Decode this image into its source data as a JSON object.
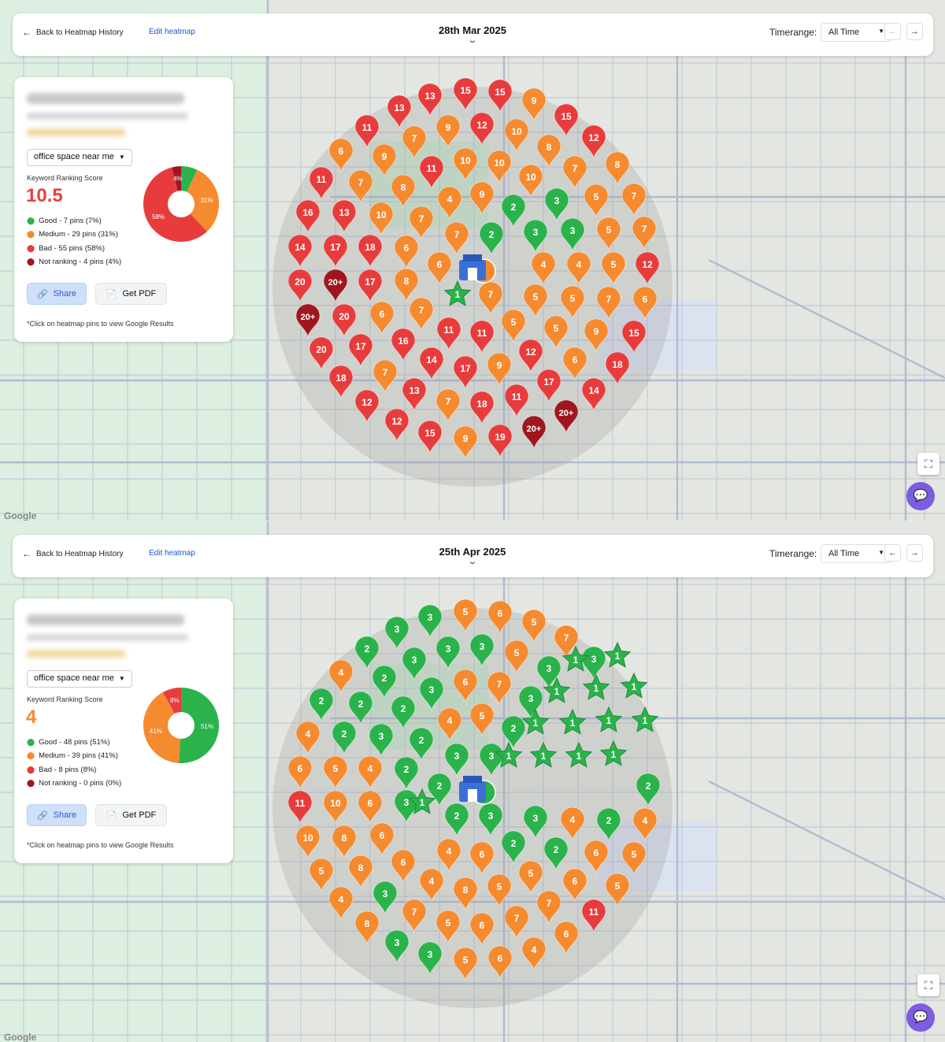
{
  "colors": {
    "good": "#2bb34b",
    "medium": "#f58a2f",
    "bad": "#e83c3c",
    "not_ranking": "#a01620",
    "accent": "#1a56c8",
    "chat": "#7c5ce0"
  },
  "panels": [
    {
      "back_label": "Back to Heatmap History",
      "edit_label": "Edit heatmap",
      "date": "28th Mar 2025",
      "timerange_label": "Timerange:",
      "timerange_value": "All Time",
      "keyword": "office space near me",
      "krs_label": "Keyword Ranking Score",
      "score": "10.5",
      "score_color": "#e8403c",
      "legend": [
        "Good - 7 pins (7%)",
        "Medium - 29 pins (31%)",
        "Bad - 55 pins (58%)",
        "Not ranking - 4 pins (4%)"
      ],
      "chart_data": {
        "type": "pie",
        "categories": [
          "Good",
          "Medium",
          "Bad",
          "Not ranking"
        ],
        "values": [
          7,
          31,
          58,
          4
        ],
        "labels": [
          "",
          "31%",
          "58%",
          "4%"
        ]
      },
      "share_label": "Share",
      "pdf_label": "Get PDF",
      "note": "*Click on heatmap pins to view Google Results",
      "pins": [
        [
          "13",
          507,
          140
        ],
        [
          "13",
          546,
          125
        ],
        [
          "15",
          591,
          118
        ],
        [
          "15",
          635,
          120
        ],
        [
          "9",
          678,
          131
        ],
        [
          "11",
          466,
          165
        ],
        [
          "7",
          526,
          179
        ],
        [
          "9",
          569,
          165
        ],
        [
          "12",
          612,
          162
        ],
        [
          "10",
          656,
          170
        ],
        [
          "15",
          719,
          151
        ],
        [
          "12",
          754,
          178
        ],
        [
          "6",
          433,
          195
        ],
        [
          "9",
          488,
          202
        ],
        [
          "11",
          548,
          217
        ],
        [
          "10",
          591,
          207
        ],
        [
          "10",
          634,
          210
        ],
        [
          "8",
          697,
          190
        ],
        [
          "7",
          730,
          217
        ],
        [
          "8",
          784,
          212
        ],
        [
          "11",
          408,
          231
        ],
        [
          "7",
          458,
          235
        ],
        [
          "8",
          512,
          241
        ],
        [
          "4",
          571,
          256
        ],
        [
          "10",
          674,
          228
        ],
        [
          "9",
          612,
          250
        ],
        [
          "2",
          652,
          266
        ],
        [
          "3",
          707,
          258
        ],
        [
          "5",
          757,
          253
        ],
        [
          "7",
          805,
          252
        ],
        [
          "16",
          391,
          273
        ],
        [
          "13",
          437,
          273
        ],
        [
          "10",
          484,
          276
        ],
        [
          "7",
          535,
          281
        ],
        [
          "7",
          580,
          301
        ],
        [
          "2",
          624,
          301
        ],
        [
          "3",
          680,
          298
        ],
        [
          "3",
          727,
          296
        ],
        [
          "5",
          773,
          295
        ],
        [
          "7",
          818,
          294
        ],
        [
          "14",
          381,
          317
        ],
        [
          "17",
          426,
          317
        ],
        [
          "18",
          470,
          317
        ],
        [
          "6",
          516,
          318
        ],
        [
          "4",
          690,
          339
        ],
        [
          "4",
          735,
          339
        ],
        [
          "5",
          779,
          339
        ],
        [
          "12",
          822,
          339
        ],
        [
          "20",
          381,
          361
        ],
        [
          "20+",
          426,
          361
        ],
        [
          "17",
          470,
          361
        ],
        [
          "8",
          516,
          360
        ],
        [
          "6",
          558,
          339
        ],
        [
          "7",
          623,
          377
        ],
        [
          "5",
          680,
          380
        ],
        [
          "5",
          727,
          382
        ],
        [
          "7",
          773,
          383
        ],
        [
          "6",
          819,
          383
        ],
        [
          "20+",
          391,
          405
        ],
        [
          "20",
          437,
          405
        ],
        [
          "6",
          485,
          402
        ],
        [
          "7",
          535,
          397
        ],
        [
          "11",
          570,
          422
        ],
        [
          "11",
          612,
          426
        ],
        [
          "5",
          652,
          412
        ],
        [
          "5",
          706,
          420
        ],
        [
          "9",
          757,
          424
        ],
        [
          "15",
          805,
          426
        ],
        [
          "20",
          408,
          447
        ],
        [
          "17",
          458,
          443
        ],
        [
          "16",
          512,
          436
        ],
        [
          "14",
          548,
          460
        ],
        [
          "17",
          591,
          471
        ],
        [
          "9",
          634,
          467
        ],
        [
          "12",
          674,
          450
        ],
        [
          "6",
          730,
          460
        ],
        [
          "18",
          784,
          466
        ],
        [
          "18",
          433,
          483
        ],
        [
          "7",
          489,
          476
        ],
        [
          "13",
          526,
          499
        ],
        [
          "17",
          697,
          488
        ],
        [
          "14",
          754,
          499
        ],
        [
          "12",
          466,
          514
        ],
        [
          "7",
          569,
          513
        ],
        [
          "18",
          612,
          516
        ],
        [
          "11",
          656,
          507
        ],
        [
          "20+",
          719,
          527
        ],
        [
          "12",
          504,
          538
        ],
        [
          "15",
          546,
          553
        ],
        [
          "9",
          591,
          560
        ],
        [
          "19",
          635,
          558
        ],
        [
          "20+",
          678,
          547
        ]
      ],
      "stars": [
        [
          "1",
          581,
          374
        ]
      ],
      "circle_pin": [
        "6",
        614,
        344
      ]
    },
    {
      "back_label": "Back to Heatmap History",
      "edit_label": "Edit heatmap",
      "date": "25th Apr 2025",
      "timerange_label": "Timerange:",
      "timerange_value": "All Time",
      "keyword": "office space near me",
      "krs_label": "Keyword Ranking Score",
      "score": "4",
      "score_color": "#f58a2f",
      "legend": [
        "Good - 48 pins (51%)",
        "Medium - 39 pins (41%)",
        "Bad - 8 pins (8%)",
        "Not ranking - 0 pins (0%)"
      ],
      "chart_data": {
        "type": "pie",
        "categories": [
          "Good",
          "Medium",
          "Bad",
          "Not ranking"
        ],
        "values": [
          51,
          41,
          8,
          0
        ],
        "labels": [
          "51%",
          "41%",
          "8%",
          ""
        ]
      },
      "share_label": "Share",
      "pdf_label": "Get PDF",
      "note": "*Click on heatmap pins to view Google Results",
      "pins": [
        [
          "3",
          504,
          140
        ],
        [
          "3",
          546,
          125
        ],
        [
          "5",
          591,
          118
        ],
        [
          "6",
          635,
          120
        ],
        [
          "5",
          678,
          131
        ],
        [
          "2",
          466,
          165
        ],
        [
          "3",
          526,
          179
        ],
        [
          "3",
          569,
          165
        ],
        [
          "3",
          612,
          162
        ],
        [
          "5",
          656,
          170
        ],
        [
          "7",
          719,
          151
        ],
        [
          "3",
          754,
          178
        ],
        [
          "4",
          433,
          195
        ],
        [
          "2",
          488,
          202
        ],
        [
          "3",
          548,
          217
        ],
        [
          "6",
          591,
          207
        ],
        [
          "7",
          634,
          210
        ],
        [
          "3",
          697,
          190
        ],
        [
          "2",
          408,
          231
        ],
        [
          "2",
          458,
          235
        ],
        [
          "2",
          512,
          241
        ],
        [
          "4",
          571,
          256
        ],
        [
          "3",
          674,
          228
        ],
        [
          "5",
          612,
          250
        ],
        [
          "2",
          652,
          266
        ],
        [
          "4",
          391,
          273
        ],
        [
          "2",
          437,
          273
        ],
        [
          "3",
          484,
          276
        ],
        [
          "2",
          535,
          281
        ],
        [
          "3",
          580,
          301
        ],
        [
          "3",
          624,
          301
        ],
        [
          "6",
          381,
          317
        ],
        [
          "5",
          426,
          317
        ],
        [
          "4",
          470,
          317
        ],
        [
          "2",
          516,
          318
        ],
        [
          "2",
          558,
          339
        ],
        [
          "2",
          823,
          339
        ],
        [
          "11",
          381,
          361
        ],
        [
          "10",
          426,
          361
        ],
        [
          "6",
          470,
          361
        ],
        [
          "3",
          516,
          360
        ],
        [
          "2",
          580,
          377
        ],
        [
          "3",
          623,
          377
        ],
        [
          "3",
          680,
          380
        ],
        [
          "4",
          727,
          382
        ],
        [
          "2",
          773,
          383
        ],
        [
          "4",
          819,
          383
        ],
        [
          "10",
          391,
          405
        ],
        [
          "8",
          437,
          405
        ],
        [
          "6",
          485,
          402
        ],
        [
          "4",
          570,
          422
        ],
        [
          "6",
          612,
          426
        ],
        [
          "2",
          652,
          412
        ],
        [
          "2",
          706,
          420
        ],
        [
          "6",
          757,
          424
        ],
        [
          "5",
          805,
          426
        ],
        [
          "5",
          408,
          447
        ],
        [
          "8",
          458,
          443
        ],
        [
          "6",
          512,
          436
        ],
        [
          "4",
          548,
          460
        ],
        [
          "8",
          591,
          471
        ],
        [
          "5",
          634,
          467
        ],
        [
          "5",
          674,
          450
        ],
        [
          "6",
          730,
          460
        ],
        [
          "5",
          784,
          466
        ],
        [
          "4",
          433,
          483
        ],
        [
          "3",
          489,
          476
        ],
        [
          "7",
          526,
          499
        ],
        [
          "7",
          697,
          488
        ],
        [
          "11",
          754,
          499
        ],
        [
          "8",
          466,
          514
        ],
        [
          "5",
          569,
          513
        ],
        [
          "6",
          612,
          516
        ],
        [
          "7",
          656,
          507
        ],
        [
          "6",
          719,
          527
        ],
        [
          "3",
          504,
          538
        ],
        [
          "3",
          546,
          553
        ],
        [
          "5",
          591,
          560
        ],
        [
          "6",
          635,
          558
        ],
        [
          "4",
          678,
          547
        ]
      ],
      "stars": [
        [
          "1",
          731,
          176
        ],
        [
          "1",
          784,
          171
        ],
        [
          "1",
          707,
          216
        ],
        [
          "1",
          757,
          212
        ],
        [
          "1",
          805,
          210
        ],
        [
          "1",
          680,
          256
        ],
        [
          "1",
          727,
          256
        ],
        [
          "1",
          773,
          253
        ],
        [
          "1",
          819,
          253
        ],
        [
          "1",
          646,
          298
        ],
        [
          "1",
          690,
          298
        ],
        [
          "1",
          735,
          298
        ],
        [
          "1",
          779,
          296
        ],
        [
          "1",
          536,
          357
        ]
      ],
      "circle_pin": [
        "3",
        614,
        344
      ]
    }
  ]
}
